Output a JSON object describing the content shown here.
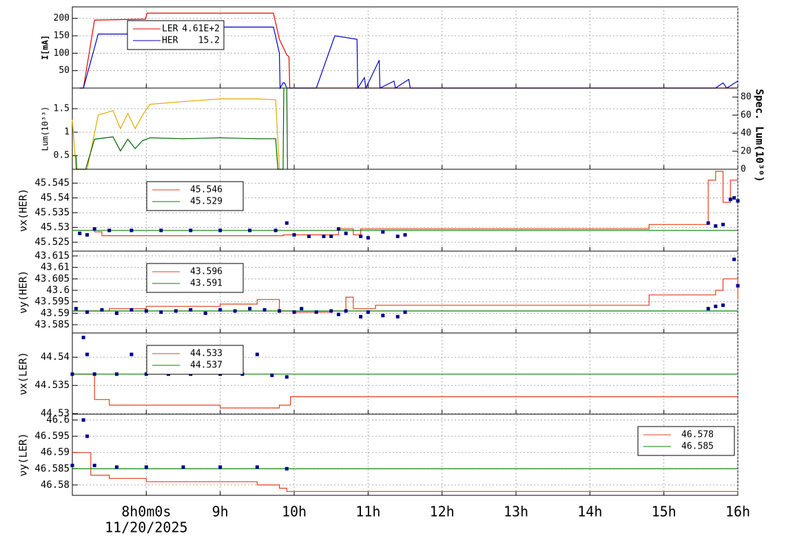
{
  "chart_data": {
    "type": "line",
    "xlim": [
      7.0,
      16
    ],
    "xticks": [
      {
        "value": 8,
        "label": "8h0m0s"
      },
      {
        "value": 9,
        "label": "9h"
      },
      {
        "value": 10,
        "label": "10h"
      },
      {
        "value": 11,
        "label": "11h"
      },
      {
        "value": 12,
        "label": "12h"
      },
      {
        "value": 13,
        "label": "13h"
      },
      {
        "value": 14,
        "label": "14h"
      },
      {
        "value": 15,
        "label": "15h"
      },
      {
        "value": 16,
        "label": "16h"
      }
    ],
    "x_label": "11/20/2025",
    "grid": true,
    "panels": [
      {
        "y_label": "I[mA]",
        "ylim": [
          0,
          233
        ],
        "yticks": [
          50,
          100,
          150,
          200
        ],
        "legend": "upper left",
        "series": [
          {
            "name": "LER",
            "legend_value": "4.61E+2",
            "color": "#e00000",
            "x": [
              7.1,
              7.15,
              7.3,
              7.99,
              8.01,
              9.72,
              9.8,
              9.9,
              9.93,
              9.94,
              16
            ],
            "values": [
              0,
              0,
              195,
              198,
              215,
              215,
              140,
              95,
              90,
              0,
              0
            ]
          },
          {
            "name": "HER",
            "legend_value": "15.2",
            "color": "#0000c0",
            "x": [
              7.1,
              7.15,
              7.35,
              7.99,
              8.01,
              9.72,
              9.8,
              9.81,
              9.85,
              9.87,
              9.9,
              10.3,
              10.55,
              10.85,
              10.86,
              10.95,
              10.97,
              11.15,
              11.16,
              11.35,
              11.37,
              11.55,
              11.57,
              15.7,
              15.8,
              15.85,
              16
            ],
            "values": [
              0,
              0,
              155,
              155,
              175,
              175,
              100,
              0,
              15,
              15,
              0,
              0,
              150,
              140,
              0,
              30,
              0,
              80,
              0,
              20,
              0,
              25,
              0,
              0,
              15,
              0,
              20
            ]
          }
        ]
      },
      {
        "y_label": "Lum(10³³)",
        "y2_label": "Spec. Lum(10³⁰)",
        "ylim": [
          0.21,
          1.94
        ],
        "yticks": [
          0.5,
          1,
          1.5
        ],
        "y2lim": [
          0,
          90
        ],
        "y2ticks": [
          0,
          20,
          40,
          60,
          80
        ],
        "series": [
          {
            "color": "#e6a800",
            "axis": "y2",
            "x": [
              7.0,
              7.05,
              7.2,
              7.35,
              7.55,
              7.65,
              7.75,
              7.85,
              7.95,
              8.05,
              8.5,
              9.0,
              9.5,
              9.75,
              9.8
            ],
            "values": [
              55,
              0,
              0,
              60,
              65,
              45,
              62,
              45,
              60,
              72,
              75,
              78,
              78,
              77,
              0
            ]
          },
          {
            "color": "#006400",
            "x": [
              7.0,
              7.05,
              7.06,
              7.18,
              7.3,
              7.55,
              7.65,
              7.75,
              7.85,
              7.95,
              8.05,
              8.5,
              9.0,
              9.5,
              9.75,
              9.78,
              9.85,
              9.86,
              9.9,
              9.91
            ],
            "values": [
              0.5,
              0.5,
              0.21,
              0.21,
              0.85,
              0.9,
              0.6,
              0.85,
              0.65,
              0.82,
              0.88,
              0.86,
              0.88,
              0.86,
              0.86,
              0.21,
              0.21,
              1.94,
              1.94,
              0.21
            ]
          }
        ]
      },
      {
        "y_label": "νx(HER)",
        "ylim": [
          45.522,
          45.5497
        ],
        "yticks": [
          45.525,
          45.53,
          45.535,
          45.54,
          45.545
        ],
        "legend": "upper left",
        "series": [
          {
            "name": "45.546",
            "color": "#e04020",
            "step": true,
            "x": [
              7.0,
              7.3,
              7.4,
              9.8,
              9.85,
              10.6,
              10.8,
              10.9,
              14.8,
              15.6,
              15.7,
              15.8,
              15.9,
              16
            ],
            "values": [
              45.529,
              45.5285,
              45.5272,
              45.5272,
              45.5275,
              45.5295,
              45.5275,
              45.5295,
              45.531,
              45.546,
              45.549,
              45.5385,
              45.546,
              45.546
            ]
          },
          {
            "name": "45.529",
            "color": "#008000",
            "x": [
              7.0,
              16
            ],
            "values": [
              45.529,
              45.529
            ]
          },
          {
            "color": "#00008b",
            "mode": "markers",
            "x": [
              7.1,
              7.2,
              7.3,
              7.5,
              7.8,
              8.2,
              8.6,
              9.0,
              9.4,
              9.75,
              9.9,
              10.0,
              10.2,
              10.4,
              10.5,
              10.6,
              10.7,
              10.9,
              11.0,
              11.2,
              11.4,
              11.5,
              15.6,
              15.7,
              15.8,
              15.9,
              15.95,
              16.0
            ],
            "values": [
              45.528,
              45.5275,
              45.5295,
              45.529,
              45.529,
              45.529,
              45.529,
              45.529,
              45.529,
              45.529,
              45.5315,
              45.5275,
              45.527,
              45.527,
              45.527,
              45.5295,
              45.528,
              45.527,
              45.5265,
              45.5285,
              45.527,
              45.5275,
              45.5315,
              45.5305,
              45.531,
              45.5395,
              45.54,
              45.539
            ]
          }
        ]
      },
      {
        "y_label": "νy(HER)",
        "ylim": [
          43.5814,
          43.6171
        ],
        "yticks": [
          43.585,
          43.59,
          43.595,
          43.6,
          43.605,
          43.61,
          43.615
        ],
        "legend": "upper left",
        "series": [
          {
            "name": "43.596",
            "color": "#e04020",
            "step": true,
            "x": [
              7.0,
              7.5,
              8.0,
              9.0,
              9.5,
              9.8,
              10.0,
              10.5,
              10.7,
              10.8,
              11.1,
              14.8,
              15.7,
              15.8,
              16
            ],
            "values": [
              43.591,
              43.592,
              43.593,
              43.594,
              43.596,
              43.591,
              43.5905,
              43.591,
              43.597,
              43.592,
              43.5935,
              43.598,
              43.6,
              43.605,
              43.596
            ]
          },
          {
            "name": "43.591",
            "color": "#008000",
            "x": [
              7.0,
              16
            ],
            "values": [
              43.591,
              43.591
            ]
          },
          {
            "color": "#00008b",
            "mode": "markers",
            "x": [
              7.05,
              7.2,
              7.4,
              7.6,
              7.8,
              8.0,
              8.2,
              8.4,
              8.6,
              8.8,
              9.0,
              9.2,
              9.4,
              9.6,
              9.8,
              10.0,
              10.1,
              10.3,
              10.5,
              10.6,
              10.7,
              10.9,
              11.0,
              11.2,
              11.4,
              11.5,
              15.6,
              15.7,
              15.8,
              15.95,
              16.0
            ],
            "values": [
              43.592,
              43.5905,
              43.5915,
              43.59,
              43.5915,
              43.591,
              43.5905,
              43.591,
              43.5915,
              43.59,
              43.5915,
              43.591,
              43.592,
              43.5915,
              43.591,
              43.5905,
              43.592,
              43.5905,
              43.591,
              43.5895,
              43.591,
              43.5885,
              43.5905,
              43.589,
              43.5885,
              43.5905,
              43.592,
              43.593,
              43.5935,
              43.6135,
              43.602
            ]
          }
        ]
      },
      {
        "y_label": "νx(LER)",
        "ylim": [
          44.5299,
          44.5443
        ],
        "yticks": [
          44.53,
          44.535,
          44.54
        ],
        "legend": "upper left",
        "series": [
          {
            "name": "44.533",
            "color": "#e04020",
            "step": true,
            "x": [
              7.0,
              7.2,
              7.3,
              7.5,
              8.0,
              9.0,
              9.8,
              9.95,
              16
            ],
            "values": [
              44.537,
              44.537,
              44.5325,
              44.5315,
              44.5315,
              44.531,
              44.5315,
              44.533,
              44.533
            ]
          },
          {
            "name": "44.537",
            "color": "#008000",
            "x": [
              7.0,
              16
            ],
            "values": [
              44.537,
              44.537
            ]
          },
          {
            "color": "#00008b",
            "mode": "markers",
            "x": [
              7.0,
              7.15,
              7.2,
              7.3,
              7.6,
              7.8,
              8.0,
              8.3,
              8.6,
              9.0,
              9.3,
              9.5,
              9.7,
              9.9
            ],
            "values": [
              44.537,
              44.5435,
              44.5405,
              44.537,
              44.537,
              44.5405,
              44.537,
              44.537,
              44.537,
              44.537,
              44.537,
              44.5405,
              44.5368,
              44.5365
            ]
          }
        ]
      },
      {
        "y_label": "νy(LER)",
        "ylim": [
          46.5768,
          46.6018
        ],
        "yticks": [
          46.58,
          46.585,
          46.59,
          46.595,
          46.6
        ],
        "legend": "upper right",
        "series": [
          {
            "name": "46.578",
            "color": "#e04020",
            "step": true,
            "x": [
              7.0,
              7.2,
              7.25,
              7.5,
              8.0,
              9.0,
              9.5,
              9.8,
              9.9,
              10.0,
              16
            ],
            "values": [
              46.59,
              46.59,
              46.583,
              46.582,
              46.581,
              46.581,
              46.58,
              46.579,
              46.578,
              46.578,
              46.578
            ]
          },
          {
            "name": "46.585",
            "color": "#008000",
            "x": [
              7.0,
              16
            ],
            "values": [
              46.585,
              46.585
            ]
          },
          {
            "color": "#00008b",
            "mode": "markers",
            "x": [
              7.0,
              7.15,
              7.2,
              7.3,
              7.6,
              8.0,
              8.5,
              9.0,
              9.5,
              9.9
            ],
            "values": [
              46.586,
              46.6,
              46.595,
              46.586,
              46.5855,
              46.5855,
              46.5855,
              46.5855,
              46.5855,
              46.585
            ]
          }
        ]
      }
    ]
  }
}
